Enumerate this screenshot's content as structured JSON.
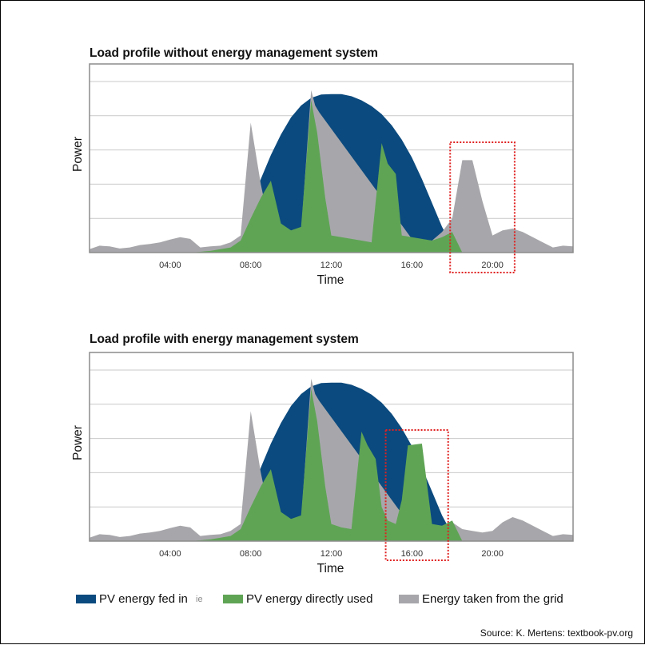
{
  "charts": [
    {
      "title": "Load profile without energy management system"
    },
    {
      "title": "Load profile with energy management system"
    }
  ],
  "legend": [
    {
      "label": "PV energy fed in",
      "color": "#0b4a7e"
    },
    {
      "label": "PV energy directly used",
      "color": "#5fa455"
    },
    {
      "label": "Energy taken from the grid",
      "color": "#a7a7ab"
    }
  ],
  "legend_note": "ie",
  "source": "Source: K. Mertens: textbook-pv.org",
  "chart_data": [
    {
      "type": "area",
      "title": "Load profile without energy management system",
      "xlabel": "Time",
      "ylabel": "Power",
      "x_unit": "hour of day",
      "xlim": [
        0,
        24
      ],
      "ylim": [
        0,
        5
      ],
      "grid": true,
      "xticks": [
        4,
        8,
        12,
        16,
        20
      ],
      "xtick_labels": [
        "04:00",
        "08:00",
        "12:00",
        "16:00",
        "20:00"
      ],
      "highlight_box_x": [
        17.9,
        21.1
      ],
      "series": [
        {
          "name": "PV energy fed in",
          "color": "#0b4a7e",
          "x": [
            7.1,
            7.5,
            8,
            8.5,
            9,
            9.5,
            10,
            10.5,
            11,
            11.5,
            12,
            12.5,
            13,
            13.5,
            14,
            14.5,
            15,
            15.5,
            16,
            16.5,
            17,
            17.5,
            18,
            18.5
          ],
          "y": [
            0,
            0.45,
            1.3,
            2.15,
            2.85,
            3.45,
            3.95,
            4.3,
            4.52,
            4.62,
            4.63,
            4.63,
            4.57,
            4.45,
            4.28,
            4.05,
            3.72,
            3.3,
            2.78,
            2.15,
            1.45,
            0.75,
            0.2,
            0
          ]
        },
        {
          "name": "PV energy directly used",
          "color": "#5fa455",
          "x": [
            5,
            6,
            7,
            7.5,
            8,
            8.5,
            9,
            9.5,
            10,
            10.5,
            11,
            11.3,
            11.7,
            12,
            12.5,
            13,
            13.5,
            14,
            14.5,
            14.8,
            15.2,
            15.5,
            16,
            16.5,
            17,
            17.5,
            18,
            18.5
          ],
          "y": [
            0,
            0.05,
            0.15,
            0.35,
            1.0,
            1.6,
            2.1,
            0.85,
            0.65,
            0.75,
            4.45,
            3.5,
            1.6,
            0.5,
            0.45,
            0.4,
            0.35,
            0.3,
            3.2,
            2.6,
            2.3,
            0.5,
            0.45,
            0.4,
            0.35,
            0.45,
            0.6,
            0
          ]
        },
        {
          "name": "Energy taken from the grid",
          "color": "#a7a7ab",
          "x": [
            0,
            0.5,
            1,
            1.5,
            2,
            2.5,
            3,
            3.5,
            4,
            4.5,
            5,
            5.5,
            6,
            6.5,
            7,
            7.5,
            8,
            8.5,
            9,
            10.5,
            11,
            11.2,
            11.4,
            16,
            17,
            17.5,
            18,
            18.5,
            19,
            19.5,
            20,
            20.5,
            21,
            21.5,
            22,
            22.5,
            23,
            23.5,
            24
          ],
          "y": [
            0.1,
            0.2,
            0.18,
            0.12,
            0.15,
            0.22,
            0.25,
            0.3,
            0.38,
            0.45,
            0.4,
            0.15,
            0.18,
            0.2,
            0.3,
            0.5,
            3.8,
            2.0,
            0.6,
            0.6,
            4.75,
            4.3,
            4.1,
            0.4,
            0.35,
            0.6,
            1.0,
            2.7,
            2.7,
            1.5,
            0.5,
            0.65,
            0.7,
            0.6,
            0.45,
            0.3,
            0.15,
            0.2,
            0.18
          ]
        }
      ]
    },
    {
      "type": "area",
      "title": "Load profile with energy management system",
      "xlabel": "Time",
      "ylabel": "Power",
      "x_unit": "hour of day",
      "xlim": [
        0,
        24
      ],
      "ylim": [
        0,
        5
      ],
      "grid": true,
      "xticks": [
        4,
        8,
        12,
        16,
        20
      ],
      "xtick_labels": [
        "04:00",
        "08:00",
        "12:00",
        "16:00",
        "20:00"
      ],
      "highlight_box_x": [
        14.7,
        17.8
      ],
      "series": [
        {
          "name": "PV energy fed in",
          "color": "#0b4a7e",
          "x": [
            7.1,
            7.5,
            8,
            8.5,
            9,
            9.5,
            10,
            10.5,
            11,
            11.5,
            12,
            12.5,
            13,
            13.5,
            14,
            14.5,
            15,
            15.5,
            16,
            16.5,
            17,
            17.5,
            18,
            18.5
          ],
          "y": [
            0,
            0.45,
            1.3,
            2.15,
            2.85,
            3.45,
            3.95,
            4.3,
            4.52,
            4.62,
            4.63,
            4.63,
            4.57,
            4.45,
            4.28,
            4.05,
            3.72,
            3.3,
            2.78,
            2.15,
            1.45,
            0.75,
            0.2,
            0
          ]
        },
        {
          "name": "PV energy directly used",
          "color": "#5fa455",
          "x": [
            5,
            6,
            7,
            7.5,
            8,
            8.5,
            9,
            9.5,
            10,
            10.5,
            11,
            11.3,
            11.7,
            12,
            12.5,
            13,
            13.5,
            13.8,
            14.2,
            14.5,
            14.8,
            15.2,
            15.5,
            15.8,
            16.5,
            17,
            17.5,
            18,
            18.5
          ],
          "y": [
            0,
            0.05,
            0.15,
            0.35,
            1.0,
            1.6,
            2.1,
            0.85,
            0.65,
            0.75,
            4.45,
            3.5,
            1.6,
            0.5,
            0.4,
            0.35,
            3.2,
            2.8,
            2.4,
            1.0,
            0.6,
            0.5,
            1.2,
            2.8,
            2.85,
            0.5,
            0.45,
            0.6,
            0
          ]
        },
        {
          "name": "Energy taken from the grid",
          "color": "#a7a7ab",
          "x": [
            0,
            0.5,
            1,
            1.5,
            2,
            2.5,
            3,
            3.5,
            4,
            4.5,
            5,
            5.5,
            6,
            6.5,
            7,
            7.5,
            8,
            8.5,
            9,
            10.5,
            11,
            11.2,
            11.4,
            16,
            17,
            17.5,
            18,
            18.5,
            19,
            19.5,
            20,
            20.5,
            21,
            21.5,
            22,
            22.5,
            23,
            23.5,
            24
          ],
          "y": [
            0.1,
            0.2,
            0.18,
            0.12,
            0.15,
            0.22,
            0.25,
            0.3,
            0.38,
            0.45,
            0.4,
            0.15,
            0.18,
            0.2,
            0.3,
            0.5,
            3.8,
            2.0,
            0.6,
            0.6,
            4.75,
            4.3,
            4.1,
            0.4,
            0.35,
            0.45,
            0.55,
            0.35,
            0.3,
            0.25,
            0.3,
            0.55,
            0.7,
            0.6,
            0.45,
            0.3,
            0.15,
            0.2,
            0.18
          ]
        }
      ]
    }
  ]
}
